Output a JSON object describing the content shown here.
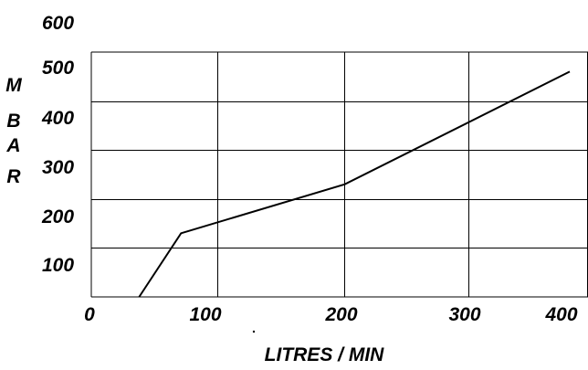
{
  "chart_data": {
    "type": "line",
    "title": "",
    "xlabel": "LITRES / MIN",
    "ylabel": "M B A R",
    "ylabel_letters": [
      "M",
      "B",
      "A",
      "R"
    ],
    "xlim": [
      0,
      400
    ],
    "ylim": [
      0,
      500
    ],
    "x_ticks": [
      0,
      100,
      200,
      300,
      400
    ],
    "x_tick_labels": [
      "0",
      "100",
      "200",
      "300",
      "400"
    ],
    "y_ticks": [
      100,
      200,
      300,
      400,
      500,
      600
    ],
    "y_tick_labels": [
      "100",
      "200",
      "300",
      "400",
      "500",
      "600"
    ],
    "grid": true,
    "series": [
      {
        "x": [
          40,
          75,
          212,
          400
        ],
        "y": [
          0,
          130,
          230,
          460
        ]
      }
    ],
    "colors": {
      "line": "#000000",
      "grid": "#000000"
    }
  }
}
